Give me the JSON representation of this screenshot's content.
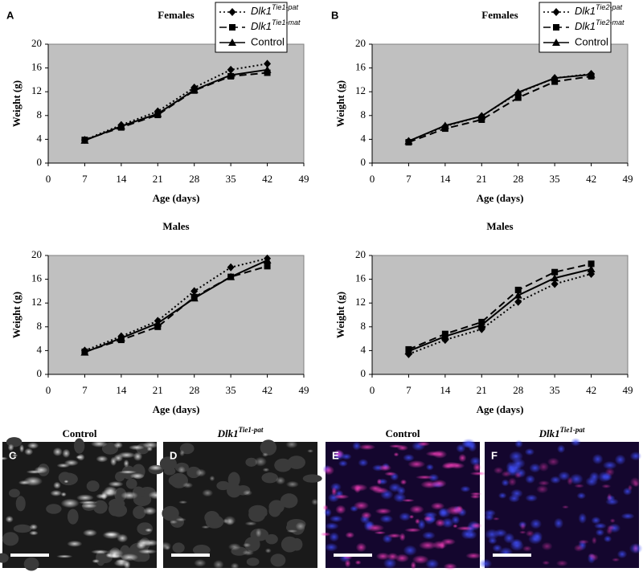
{
  "chart_data": [
    {
      "type": "line",
      "panel_label": "A",
      "title": "Females",
      "x_label": "Age (days)",
      "y_label": "Weight (g)",
      "x": [
        7,
        14,
        21,
        28,
        35,
        42
      ],
      "xlim": [
        0,
        49
      ],
      "xticks": [
        0,
        7,
        14,
        21,
        28,
        35,
        42,
        49
      ],
      "ylim": [
        0,
        20
      ],
      "yticks": [
        0,
        4,
        8,
        12,
        16,
        20
      ],
      "legend": true,
      "series": [
        {
          "name": "Dlk1Tie1-pat",
          "color": "#000000",
          "marker": "diamond",
          "line_style": "dotted",
          "values": [
            3.9,
            6.4,
            8.7,
            12.7,
            15.7,
            16.7
          ]
        },
        {
          "name": "Dlk1Tie1-mat",
          "color": "#000000",
          "marker": "square",
          "line_style": "dashed",
          "values": [
            3.9,
            6.0,
            8.1,
            12.2,
            14.6,
            15.2
          ]
        },
        {
          "name": "Control",
          "color": "#000000",
          "marker": "triangle",
          "line_style": "solid",
          "values": [
            3.8,
            6.2,
            8.3,
            12.3,
            14.8,
            15.7
          ]
        }
      ]
    },
    {
      "type": "line",
      "panel_label": "B",
      "title": "Females",
      "x_label": "Age (days)",
      "y_label": "Weight (g)",
      "x": [
        7,
        14,
        21,
        28,
        35,
        42
      ],
      "xlim": [
        0,
        49
      ],
      "xticks": [
        0,
        7,
        14,
        21,
        28,
        35,
        42,
        49
      ],
      "ylim": [
        0,
        20
      ],
      "yticks": [
        0,
        4,
        8,
        12,
        16,
        20
      ],
      "legend": true,
      "series": [
        {
          "name": "Dlk1Tie2-pat",
          "color": "#000000",
          "marker": "diamond",
          "line_style": "dotted",
          "values": [
            3.7,
            6.2,
            7.9,
            11.8,
            14.3,
            15.0
          ]
        },
        {
          "name": "Dlk1Tie2-mat",
          "color": "#000000",
          "marker": "square",
          "line_style": "dashed",
          "values": [
            3.5,
            5.8,
            7.3,
            11.0,
            13.7,
            14.6
          ]
        },
        {
          "name": "Control",
          "color": "#000000",
          "marker": "triangle",
          "line_style": "solid",
          "values": [
            3.7,
            6.3,
            7.9,
            11.9,
            14.3,
            14.9
          ]
        }
      ]
    },
    {
      "type": "line",
      "title": "Males",
      "x_label": "Age (days)",
      "y_label": "Weight (g)",
      "x": [
        7,
        14,
        21,
        28,
        35,
        42
      ],
      "xlim": [
        0,
        49
      ],
      "xticks": [
        0,
        7,
        14,
        21,
        28,
        35,
        42,
        49
      ],
      "ylim": [
        0,
        20
      ],
      "yticks": [
        0,
        4,
        8,
        12,
        16,
        20
      ],
      "legend": false,
      "series": [
        {
          "color": "#000000",
          "marker": "diamond",
          "line_style": "dotted",
          "values": [
            4.0,
            6.4,
            9.0,
            14.0,
            18.0,
            19.5
          ]
        },
        {
          "color": "#000000",
          "marker": "square",
          "line_style": "dashed",
          "values": [
            3.8,
            5.8,
            8.0,
            13.0,
            16.4,
            18.2
          ]
        },
        {
          "color": "#000000",
          "marker": "triangle",
          "line_style": "solid",
          "values": [
            3.7,
            6.1,
            8.6,
            12.8,
            16.4,
            19.2
          ]
        }
      ]
    },
    {
      "type": "line",
      "title": "Males",
      "x_label": "Age (days)",
      "y_label": "Weight (g)",
      "x": [
        7,
        14,
        21,
        28,
        35,
        42
      ],
      "xlim": [
        0,
        49
      ],
      "xticks": [
        0,
        7,
        14,
        21,
        28,
        35,
        42,
        49
      ],
      "ylim": [
        0,
        20
      ],
      "yticks": [
        0,
        4,
        8,
        12,
        16,
        20
      ],
      "legend": false,
      "series": [
        {
          "color": "#000000",
          "marker": "diamond",
          "line_style": "dotted",
          "values": [
            3.4,
            5.8,
            7.6,
            12.2,
            15.2,
            16.9
          ]
        },
        {
          "color": "#000000",
          "marker": "square",
          "line_style": "dashed",
          "values": [
            4.2,
            6.8,
            8.8,
            14.2,
            17.2,
            18.6
          ]
        },
        {
          "color": "#000000",
          "marker": "triangle",
          "line_style": "solid",
          "values": [
            3.9,
            6.4,
            8.3,
            13.3,
            16.2,
            17.7
          ]
        }
      ]
    }
  ],
  "panels": [
    {
      "letter": "C",
      "label": "Control"
    },
    {
      "letter": "D",
      "label": "Dlk1Tie1-pat"
    },
    {
      "letter": "E",
      "label": "Control"
    },
    {
      "letter": "F",
      "label": "Dlk1Tie1-pat"
    }
  ]
}
